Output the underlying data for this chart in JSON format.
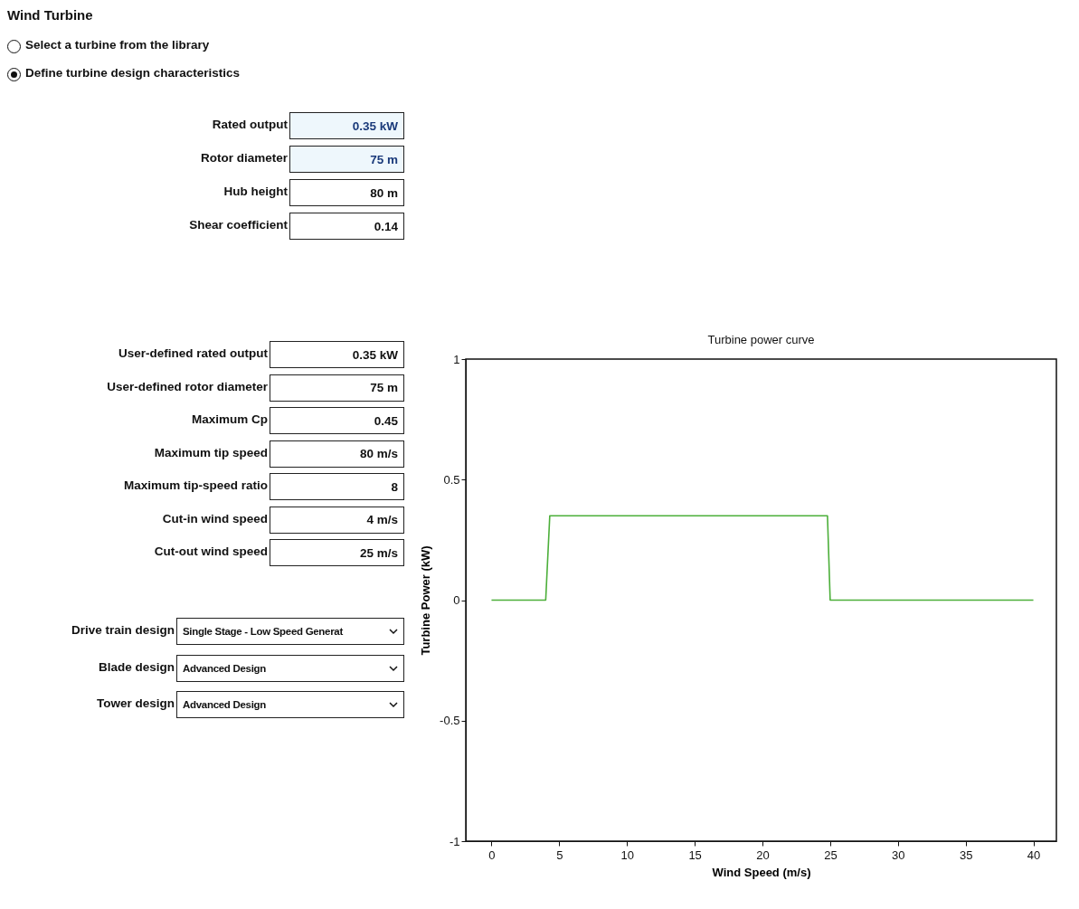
{
  "chart_data": [
    {
      "type": "other",
      "title": "Wind Turbine",
      "annotations": [
        "Select a turbine from the library",
        "Define turbine design characteristics",
        "Rated output",
        "0.35 kW",
        "Rotor diameter",
        "75 m",
        "Hub height",
        "80 m",
        "Shear coefficient",
        "0.14",
        "User-defined rated output",
        "0.35 kW",
        "User-defined rotor diameter",
        "75 m",
        "Maximum Cp",
        "0.45",
        "Maximum tip speed",
        "80 m/s",
        "Maximum tip-speed ratio",
        "8",
        "Cut-in wind speed",
        "4 m/s",
        "Cut-out wind speed",
        "25 m/s",
        "Drive train design",
        "Single Stage - Low Speed Generat",
        "Blade design",
        "Advanced Design",
        "Tower design",
        "Advanced Design"
      ]
    },
    {
      "type": "line",
      "title": "Turbine power curve",
      "xlabel": "Wind Speed (m/s)",
      "ylabel": "Turbine Power (kW)",
      "x": [
        0,
        4,
        4.3,
        24.8,
        25,
        40
      ],
      "series": [
        {
          "color": "#4caf3a",
          "values": [
            0,
            0,
            0.35,
            0.35,
            0,
            0
          ]
        }
      ],
      "xlim": [
        -1.9,
        41.7
      ],
      "xticks": [
        0,
        5,
        10,
        15,
        20,
        25,
        30,
        35,
        40
      ],
      "ylim": [
        -1,
        1
      ],
      "yticks": [
        -1,
        -0.5,
        0,
        0.5,
        1
      ]
    }
  ]
}
